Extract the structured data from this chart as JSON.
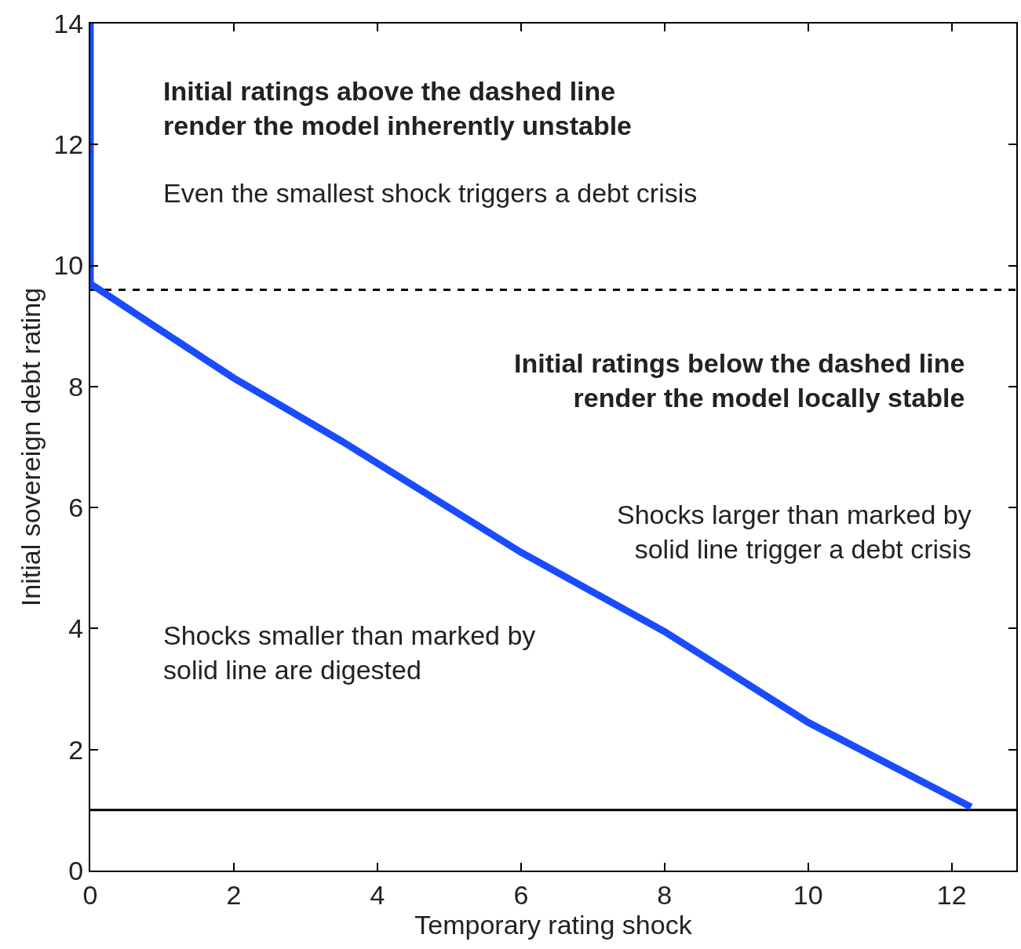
{
  "chart_data": {
    "type": "line",
    "xlabel": "Temporary rating shock",
    "ylabel": "Initial sovereign debt rating",
    "series": [
      {
        "color": "#1a4cff",
        "x": [
          0,
          0,
          0,
          0.98,
          2,
          3.5,
          6,
          8,
          10,
          12.27
        ],
        "values": [
          14,
          9.75,
          9.7,
          8.93,
          8.14,
          7.1,
          5.26,
          3.95,
          2.45,
          1.05
        ]
      }
    ],
    "xlim": [
      0,
      12.9
    ],
    "xticks": [
      0,
      2,
      4,
      6,
      8,
      10,
      12
    ],
    "ylim": [
      0,
      14
    ],
    "yticks": [
      0,
      2,
      4,
      6,
      8,
      10,
      12,
      14
    ],
    "grid": false,
    "line_style": "solid",
    "marker": "none",
    "ref_lines": [
      {
        "axis": "y",
        "value": 9.6,
        "color": "#000000",
        "line_style": "dashed"
      },
      {
        "axis": "y",
        "value": 1,
        "color": "#000000",
        "line_style": "solid"
      }
    ],
    "annotations": [
      "Initial ratings above the dashed line\nrender the model inherently unstable",
      "Even the smallest shock triggers a debt crisis",
      "Initial ratings below the dashed line\nrender the model locally stable",
      "Shocks larger than marked by\nsolid line trigger a debt crisis",
      "Shocks smaller than marked by\nsolid line are digested"
    ]
  }
}
